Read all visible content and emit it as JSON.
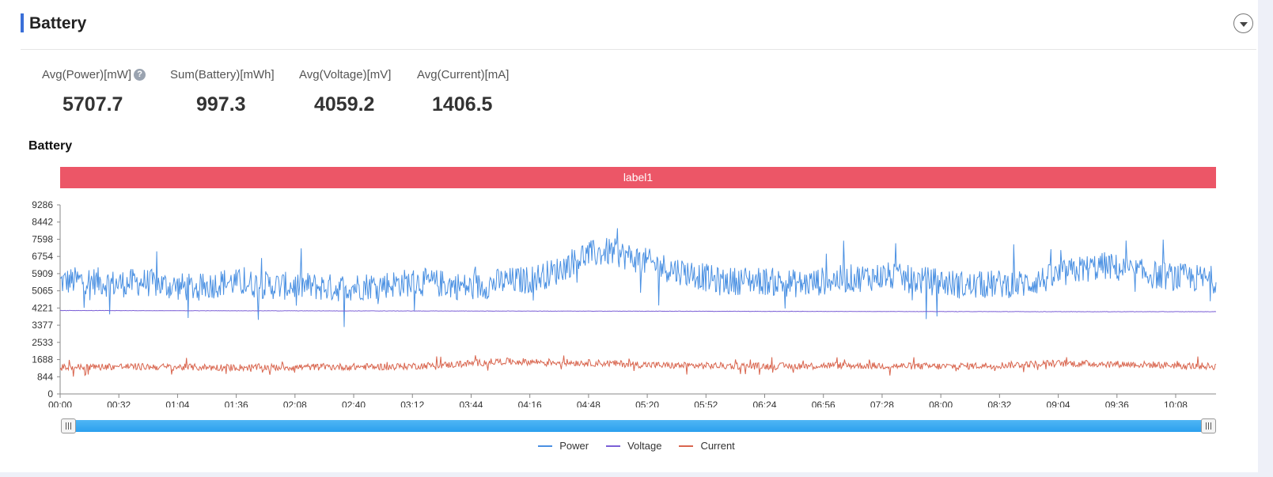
{
  "section": {
    "title": "Battery"
  },
  "metrics": [
    {
      "label": "Avg(Power)[mW]",
      "value": "5707.7",
      "has_help": true
    },
    {
      "label": "Sum(Battery)[mWh]",
      "value": "997.3",
      "has_help": false
    },
    {
      "label": "Avg(Voltage)[mV]",
      "value": "4059.2",
      "has_help": false
    },
    {
      "label": "Avg(Current)[mA]",
      "value": "1406.5",
      "has_help": false
    }
  ],
  "chart_title": "Battery",
  "label_band": {
    "text": "label1",
    "color": "#ec5667"
  },
  "chart_data": {
    "type": "line",
    "x_ticks": [
      "00:00",
      "00:32",
      "01:04",
      "01:36",
      "02:08",
      "02:40",
      "03:12",
      "03:44",
      "04:16",
      "04:48",
      "05:20",
      "05:52",
      "06:24",
      "06:56",
      "07:28",
      "08:00",
      "08:32",
      "09:04",
      "09:36",
      "10:08"
    ],
    "y_ticks": [
      0,
      844,
      1688,
      2533,
      3377,
      4221,
      5065,
      5909,
      6754,
      7598,
      8442,
      9286
    ],
    "ylim": [
      0,
      9286
    ],
    "x_range_minutes": [
      0,
      630
    ],
    "grid": false,
    "legend_placement": "bottom-center",
    "series": [
      {
        "name": "Power",
        "color": "#4a90e2",
        "x": [
          0,
          15,
          30,
          45,
          60,
          75,
          90,
          105,
          120,
          135,
          150,
          165,
          180,
          195,
          210,
          225,
          240,
          255,
          270,
          285,
          300,
          315,
          330,
          345,
          360,
          375,
          390,
          405,
          420,
          435,
          450,
          465,
          480,
          495,
          510,
          525,
          540,
          555,
          570,
          585,
          600,
          615,
          630
        ],
        "y": [
          5500,
          5600,
          5400,
          5500,
          5300,
          5200,
          5500,
          5400,
          5300,
          5300,
          5200,
          5300,
          5400,
          5500,
          5400,
          5200,
          5500,
          5600,
          6000,
          6800,
          7000,
          6600,
          6200,
          5900,
          5500,
          5600,
          5500,
          5400,
          5600,
          5700,
          5800,
          5600,
          5500,
          5300,
          5400,
          5400,
          5700,
          6100,
          6300,
          6000,
          5800,
          5700,
          5600
        ],
        "spread": 700
      },
      {
        "name": "Voltage",
        "color": "#7b5fd6",
        "x": [
          0,
          50,
          100,
          150,
          200,
          250,
          300,
          350,
          400,
          450,
          500,
          550,
          600,
          630
        ],
        "y": [
          4100,
          4090,
          4085,
          4080,
          4075,
          4070,
          4065,
          4060,
          4055,
          4050,
          4045,
          4040,
          4040,
          4040
        ],
        "spread": 8
      },
      {
        "name": "Current",
        "color": "#d9664f",
        "x": [
          0,
          30,
          60,
          90,
          120,
          150,
          180,
          210,
          240,
          270,
          300,
          330,
          360,
          390,
          420,
          450,
          480,
          510,
          540,
          570,
          600,
          630
        ],
        "y": [
          1300,
          1350,
          1320,
          1300,
          1310,
          1330,
          1340,
          1420,
          1600,
          1560,
          1500,
          1400,
          1380,
          1360,
          1400,
          1380,
          1350,
          1400,
          1500,
          1480,
          1420,
          1350
        ],
        "spread": 170
      }
    ]
  },
  "range_slider": {
    "start": 0.0,
    "end": 1.0
  },
  "icons": {
    "collapse": "chevron-down-icon",
    "help": "help-icon"
  }
}
